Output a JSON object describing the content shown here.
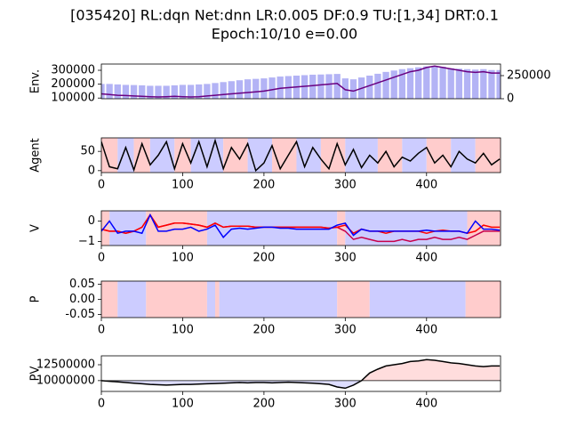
{
  "title": [
    "[035420] RL:dqn Net:dnn LR:0.005 DF:0.9 TU:[1,34] DRT:0.1",
    "Epoch:10/10 e=0.00"
  ],
  "chart_data": [
    {
      "type": "combo",
      "ylabel": "Env.",
      "x": [
        0,
        10,
        20,
        30,
        40,
        50,
        60,
        70,
        80,
        90,
        100,
        110,
        120,
        130,
        140,
        150,
        160,
        170,
        180,
        190,
        200,
        210,
        220,
        230,
        240,
        250,
        260,
        270,
        280,
        290,
        300,
        310,
        320,
        330,
        340,
        350,
        360,
        370,
        380,
        390,
        400,
        410,
        420,
        430,
        440,
        450,
        460,
        470,
        480,
        490
      ],
      "xlim": [
        0,
        491
      ],
      "ylim": [
        95000,
        345000
      ],
      "yticks": [
        100000,
        200000,
        300000
      ],
      "y2lim": [
        0,
        375000
      ],
      "y2ticks": [
        0,
        250000
      ],
      "series": [
        {
          "type": "bar",
          "axis": "y2",
          "color": "#b3b3f5",
          "values": [
            160000,
            160000,
            155000,
            150000,
            148000,
            145000,
            140000,
            140000,
            140000,
            145000,
            150000,
            150000,
            155000,
            160000,
            170000,
            180000,
            190000,
            200000,
            210000,
            215000,
            220000,
            230000,
            240000,
            245000,
            250000,
            255000,
            260000,
            262000,
            265000,
            268000,
            220000,
            210000,
            230000,
            250000,
            270000,
            290000,
            305000,
            320000,
            330000,
            340000,
            350000,
            355000,
            345000,
            330000,
            325000,
            320000,
            315000,
            320000,
            310000,
            310000
          ]
        },
        {
          "type": "line",
          "color": "#6a0080",
          "values": [
            130000,
            125000,
            120000,
            118000,
            115000,
            112000,
            110000,
            108000,
            110000,
            112000,
            110000,
            108000,
            110000,
            115000,
            120000,
            125000,
            130000,
            135000,
            140000,
            145000,
            150000,
            160000,
            170000,
            175000,
            180000,
            185000,
            190000,
            195000,
            200000,
            205000,
            160000,
            150000,
            170000,
            190000,
            210000,
            230000,
            250000,
            270000,
            290000,
            300000,
            320000,
            330000,
            320000,
            310000,
            300000,
            290000,
            285000,
            290000,
            280000,
            280000
          ]
        }
      ]
    },
    {
      "type": "line",
      "ylabel": "Agent",
      "x": [
        0,
        10,
        20,
        30,
        40,
        50,
        60,
        70,
        80,
        90,
        100,
        110,
        120,
        130,
        140,
        150,
        160,
        170,
        180,
        190,
        200,
        210,
        220,
        230,
        240,
        250,
        260,
        270,
        280,
        290,
        300,
        310,
        320,
        330,
        340,
        350,
        360,
        370,
        380,
        390,
        400,
        410,
        420,
        430,
        440,
        450,
        460,
        470,
        480,
        490
      ],
      "xlim": [
        0,
        491
      ],
      "ylim": [
        -5,
        85
      ],
      "yticks": [
        0,
        50
      ],
      "xticks": [
        0,
        100,
        200,
        300,
        400
      ],
      "spans": [
        {
          "x0": 0,
          "x1": 20,
          "color": "#ffcccc"
        },
        {
          "x0": 20,
          "x1": 40,
          "color": "#ccccff"
        },
        {
          "x0": 40,
          "x1": 60,
          "color": "#ffcccc"
        },
        {
          "x0": 60,
          "x1": 90,
          "color": "#ccccff"
        },
        {
          "x0": 90,
          "x1": 110,
          "color": "#ffcccc"
        },
        {
          "x0": 110,
          "x1": 150,
          "color": "#ccccff"
        },
        {
          "x0": 150,
          "x1": 180,
          "color": "#ffcccc"
        },
        {
          "x0": 180,
          "x1": 210,
          "color": "#ccccff"
        },
        {
          "x0": 210,
          "x1": 240,
          "color": "#ffcccc"
        },
        {
          "x0": 240,
          "x1": 270,
          "color": "#ccccff"
        },
        {
          "x0": 270,
          "x1": 300,
          "color": "#ffcccc"
        },
        {
          "x0": 300,
          "x1": 340,
          "color": "#ccccff"
        },
        {
          "x0": 340,
          "x1": 370,
          "color": "#ffcccc"
        },
        {
          "x0": 370,
          "x1": 400,
          "color": "#ccccff"
        },
        {
          "x0": 400,
          "x1": 430,
          "color": "#ffcccc"
        },
        {
          "x0": 430,
          "x1": 460,
          "color": "#ccccff"
        },
        {
          "x0": 460,
          "x1": 491,
          "color": "#ffcccc"
        }
      ],
      "series": [
        {
          "color": "#000000",
          "values": [
            75,
            10,
            5,
            60,
            2,
            70,
            15,
            40,
            75,
            5,
            70,
            20,
            75,
            10,
            78,
            5,
            60,
            30,
            70,
            0,
            20,
            65,
            5,
            40,
            75,
            10,
            60,
            30,
            5,
            70,
            15,
            55,
            8,
            40,
            20,
            50,
            10,
            35,
            25,
            45,
            60,
            20,
            40,
            10,
            50,
            30,
            20,
            45,
            15,
            30
          ]
        }
      ]
    },
    {
      "type": "line",
      "ylabel": "V",
      "x": [
        0,
        10,
        20,
        30,
        40,
        50,
        60,
        70,
        80,
        90,
        100,
        110,
        120,
        130,
        140,
        150,
        160,
        170,
        180,
        190,
        200,
        210,
        220,
        230,
        240,
        250,
        260,
        270,
        280,
        290,
        300,
        310,
        320,
        330,
        340,
        350,
        360,
        370,
        380,
        390,
        400,
        410,
        420,
        430,
        440,
        450,
        460,
        470,
        480,
        490
      ],
      "xlim": [
        0,
        491
      ],
      "ylim": [
        -1.2,
        0.5
      ],
      "yticks": [
        {
          "value": -1,
          "label": "−1"
        },
        0
      ],
      "xticks": [
        0,
        100,
        200,
        300,
        400
      ],
      "spans": [
        {
          "x0": 0,
          "x1": 10,
          "color": "#ffcccc"
        },
        {
          "x0": 10,
          "x1": 55,
          "color": "#ccccff"
        },
        {
          "x0": 55,
          "x1": 130,
          "color": "#ffcccc"
        },
        {
          "x0": 130,
          "x1": 290,
          "color": "#ccccff"
        },
        {
          "x0": 290,
          "x1": 300,
          "color": "#ffcccc"
        },
        {
          "x0": 300,
          "x1": 450,
          "color": "#ccccff"
        },
        {
          "x0": 450,
          "x1": 491,
          "color": "#ffcccc"
        }
      ],
      "series": [
        {
          "color": "#c8004a",
          "values": [
            -0.4,
            -0.5,
            -0.5,
            -0.6,
            -0.5,
            -0.3,
            0.3,
            -0.3,
            -0.2,
            -0.1,
            -0.1,
            -0.15,
            -0.2,
            -0.3,
            -0.1,
            -0.3,
            -0.25,
            -0.25,
            -0.25,
            -0.3,
            -0.3,
            -0.3,
            -0.3,
            -0.3,
            -0.3,
            -0.3,
            -0.3,
            -0.3,
            -0.35,
            -0.3,
            -0.5,
            -0.9,
            -0.8,
            -0.9,
            -1.0,
            -1.0,
            -1.0,
            -0.9,
            -1.0,
            -0.9,
            -0.9,
            -0.8,
            -0.9,
            -0.9,
            -0.8,
            -0.9,
            -0.7,
            -0.5,
            -0.5,
            -0.5
          ]
        },
        {
          "color": "#ff0000",
          "values": [
            -0.4,
            -0.5,
            -0.5,
            -0.6,
            -0.5,
            -0.3,
            0.3,
            -0.3,
            -0.2,
            -0.1,
            -0.1,
            -0.15,
            -0.2,
            -0.3,
            -0.1,
            -0.3,
            -0.25,
            -0.25,
            -0.25,
            -0.3,
            -0.3,
            -0.3,
            -0.3,
            -0.3,
            -0.3,
            -0.3,
            -0.3,
            -0.3,
            -0.35,
            -0.3,
            -0.2,
            -0.6,
            -0.4,
            -0.5,
            -0.5,
            -0.6,
            -0.5,
            -0.5,
            -0.5,
            -0.5,
            -0.6,
            -0.5,
            -0.45,
            -0.5,
            -0.5,
            -0.6,
            -0.5,
            -0.2,
            -0.3,
            -0.3
          ]
        },
        {
          "color": "#0000ff",
          "values": [
            -0.5,
            0,
            -0.6,
            -0.5,
            -0.5,
            -0.6,
            0.3,
            -0.5,
            -0.5,
            -0.4,
            -0.4,
            -0.3,
            -0.5,
            -0.4,
            -0.2,
            -0.8,
            -0.4,
            -0.35,
            -0.4,
            -0.35,
            -0.3,
            -0.3,
            -0.35,
            -0.35,
            -0.4,
            -0.4,
            -0.4,
            -0.4,
            -0.4,
            -0.2,
            -0.1,
            -0.7,
            -0.4,
            -0.5,
            -0.5,
            -0.5,
            -0.5,
            -0.5,
            -0.5,
            -0.5,
            -0.45,
            -0.5,
            -0.5,
            -0.5,
            -0.5,
            -0.6,
            0,
            -0.4,
            -0.4,
            -0.45
          ]
        }
      ]
    },
    {
      "type": "shading",
      "ylabel": "P",
      "xlim": [
        0,
        491
      ],
      "ylim": [
        -0.06,
        0.06
      ],
      "yticks": [
        {
          "value": -0.05,
          "label": "-0.05"
        },
        {
          "value": 0,
          "label": "0.00"
        },
        0.05
      ],
      "xticks": [
        0,
        100,
        200,
        300,
        400
      ],
      "spans": [
        {
          "x0": 0,
          "x1": 20,
          "color": "#ffcccc"
        },
        {
          "x0": 20,
          "x1": 55,
          "color": "#ccccff"
        },
        {
          "x0": 55,
          "x1": 130,
          "color": "#ffcccc"
        },
        {
          "x0": 130,
          "x1": 140,
          "color": "#ccccff"
        },
        {
          "x0": 140,
          "x1": 145,
          "color": "#ffcccc"
        },
        {
          "x0": 145,
          "x1": 290,
          "color": "#ccccff"
        },
        {
          "x0": 290,
          "x1": 330,
          "color": "#ffcccc"
        },
        {
          "x0": 330,
          "x1": 448,
          "color": "#ccccff"
        },
        {
          "x0": 448,
          "x1": 491,
          "color": "#ffcccc"
        }
      ]
    },
    {
      "type": "area",
      "ylabel": "PV",
      "x": [
        0,
        10,
        20,
        30,
        40,
        50,
        60,
        70,
        80,
        90,
        100,
        110,
        120,
        130,
        140,
        150,
        160,
        170,
        180,
        190,
        200,
        210,
        220,
        230,
        240,
        250,
        260,
        270,
        280,
        290,
        300,
        310,
        320,
        330,
        340,
        350,
        360,
        370,
        380,
        390,
        400,
        410,
        420,
        430,
        440,
        450,
        460,
        470,
        480,
        490
      ],
      "xlim": [
        0,
        491
      ],
      "ylim": [
        8300000,
        13900000
      ],
      "yticks": [
        10000000,
        12500000
      ],
      "xticks": [
        0,
        100,
        200,
        300,
        400
      ],
      "baseline": 10000000,
      "above_color": "#ffdddd",
      "below_color": "#ddddff",
      "series": [
        {
          "color": "#000000",
          "values": [
            10000000,
            9900000,
            9800000,
            9700000,
            9600000,
            9500000,
            9400000,
            9350000,
            9300000,
            9350000,
            9400000,
            9400000,
            9450000,
            9500000,
            9550000,
            9600000,
            9650000,
            9700000,
            9650000,
            9700000,
            9700000,
            9650000,
            9700000,
            9750000,
            9700000,
            9650000,
            9600000,
            9500000,
            9400000,
            9000000,
            8800000,
            9300000,
            10000000,
            11200000,
            11800000,
            12300000,
            12500000,
            12700000,
            13000000,
            13100000,
            13300000,
            13200000,
            13000000,
            12800000,
            12700000,
            12500000,
            12300000,
            12200000,
            12300000,
            12300000
          ]
        }
      ]
    }
  ]
}
